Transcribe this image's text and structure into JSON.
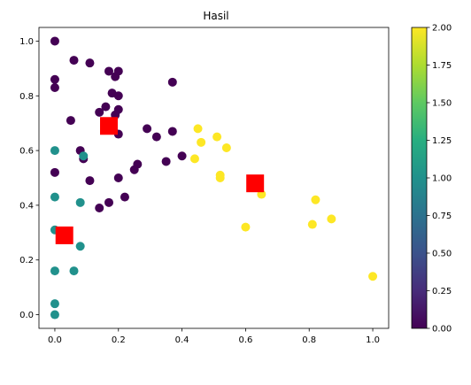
{
  "chart_data": {
    "type": "scatter",
    "title": "Hasil",
    "xlabel": "",
    "ylabel": "",
    "xlim": [
      -0.05,
      1.05
    ],
    "ylim": [
      -0.05,
      1.05
    ],
    "x_ticks": [
      "0.0",
      "0.2",
      "0.4",
      "0.6",
      "0.8",
      "1.0"
    ],
    "y_ticks": [
      "0.0",
      "0.2",
      "0.4",
      "0.6",
      "0.8",
      "1.0"
    ],
    "grid": false,
    "colormap": "viridis",
    "colorbar": {
      "range": [
        0.0,
        2.0
      ],
      "ticks": [
        "0.00",
        "0.25",
        "0.50",
        "0.75",
        "1.00",
        "1.25",
        "1.50",
        "1.75",
        "2.00"
      ]
    },
    "colors": {
      "cluster_0": "#440154",
      "cluster_1": "#21918c",
      "cluster_2": "#fde725",
      "centroid": "#ff0000"
    },
    "series": [
      {
        "cluster": 0,
        "x": [
          0.0,
          0.0,
          0.0,
          0.06,
          0.11,
          0.17,
          0.19,
          0.2,
          0.18,
          0.2,
          0.37,
          0.14,
          0.16,
          0.2,
          0.19,
          0.2,
          0.05,
          0.29,
          0.32,
          0.37,
          0.4,
          0.35,
          0.26,
          0.25,
          0.08,
          0.09,
          0.0,
          0.2,
          0.11,
          0.22,
          0.17,
          0.14
        ],
        "y": [
          1.0,
          0.86,
          0.83,
          0.93,
          0.92,
          0.89,
          0.87,
          0.89,
          0.81,
          0.8,
          0.85,
          0.74,
          0.76,
          0.75,
          0.73,
          0.66,
          0.71,
          0.68,
          0.65,
          0.67,
          0.58,
          0.56,
          0.55,
          0.53,
          0.6,
          0.57,
          0.52,
          0.5,
          0.49,
          0.43,
          0.41,
          0.39
        ]
      },
      {
        "cluster": 1,
        "x": [
          0.0,
          0.09,
          0.0,
          0.08,
          0.0,
          0.08,
          0.0,
          0.06,
          0.0,
          0.0
        ],
        "y": [
          0.6,
          0.58,
          0.43,
          0.41,
          0.31,
          0.25,
          0.16,
          0.16,
          0.04,
          0.0
        ]
      },
      {
        "cluster": 2,
        "x": [
          0.45,
          0.46,
          0.44,
          0.51,
          0.54,
          0.52,
          0.52,
          0.65,
          0.6,
          0.82,
          0.81,
          0.87,
          1.0
        ],
        "y": [
          0.68,
          0.63,
          0.57,
          0.65,
          0.61,
          0.51,
          0.5,
          0.44,
          0.32,
          0.42,
          0.33,
          0.35,
          0.14
        ]
      }
    ],
    "centroids": {
      "x": [
        0.17,
        0.03,
        0.63
      ],
      "y": [
        0.69,
        0.29,
        0.48
      ]
    }
  }
}
